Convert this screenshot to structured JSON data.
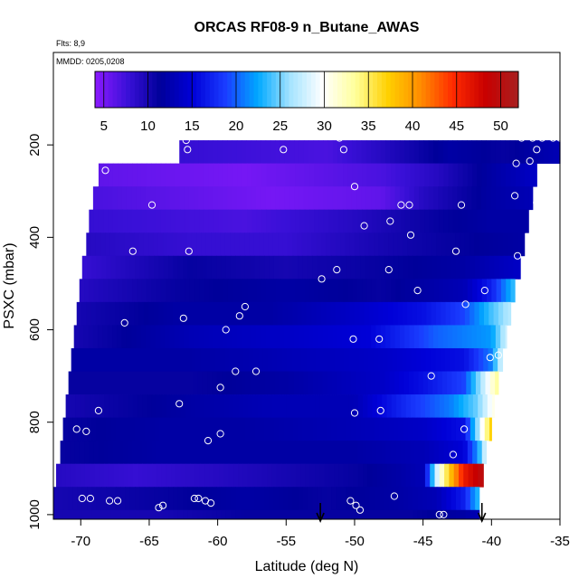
{
  "chart_data": {
    "type": "heatmap",
    "title": "ORCAS RF08-9 n_Butane_AWAS",
    "flights_note": "Flts: 8,9",
    "date_note": "MMDD: 0205,0208",
    "xlabel": "Latitude (deg N)",
    "ylabel": "PSXC (mbar)",
    "xlim": [
      -72,
      -35
    ],
    "ylim": [
      1010,
      0
    ],
    "x_ticks": [
      -70,
      -65,
      -60,
      -55,
      -50,
      -45,
      -40,
      -35
    ],
    "y_ticks": [
      200,
      400,
      600,
      800,
      1000
    ],
    "colorbar": {
      "range": [
        4,
        52
      ],
      "ticks": [
        5,
        10,
        15,
        20,
        25,
        30,
        35,
        40,
        45,
        50
      ],
      "colors": [
        "#8b1aff",
        "#3a10d8",
        "#00009a",
        "#0000d8",
        "#1a3cff",
        "#00a8ff",
        "#a6e4ff",
        "#ffffff",
        "#ffff9a",
        "#ffd000",
        "#ff8c00",
        "#ff2a00",
        "#c80000",
        "#a82020"
      ]
    },
    "pressure_bands_mbar": [
      190,
      240,
      290,
      340,
      390,
      440,
      490,
      540,
      590,
      640,
      690,
      740,
      790,
      840,
      890,
      940,
      990,
      1010
    ],
    "band_lat_min": [
      -62.8,
      -68.7,
      -69.1,
      -69.4,
      -69.6,
      -69.9,
      -70.1,
      -70.3,
      -70.5,
      -70.7,
      -70.9,
      -71.1,
      -71.3,
      -71.5,
      -71.8,
      -72.0,
      -72.0
    ],
    "band_lat_max": [
      -35,
      -36.7,
      -37.0,
      -37.3,
      -37.6,
      -37.9,
      -38.3,
      -38.6,
      -38.9,
      -39.2,
      -39.5,
      -39.8,
      -40.0,
      -40.3,
      -40.6,
      -40.9,
      -40.9
    ],
    "bands": [
      {
        "stops": [
          [
            -62.8,
            8
          ],
          [
            -52,
            7
          ],
          [
            -48,
            9
          ],
          [
            -43,
            12
          ],
          [
            -39,
            11
          ],
          [
            -35,
            13
          ]
        ]
      },
      {
        "stops": [
          [
            -68.7,
            6
          ],
          [
            -58,
            5
          ],
          [
            -48,
            7
          ],
          [
            -44,
            9
          ],
          [
            -40,
            12
          ],
          [
            -36.7,
            14
          ]
        ]
      },
      {
        "stops": [
          [
            -69.1,
            7
          ],
          [
            -56,
            5
          ],
          [
            -48,
            6
          ],
          [
            -45,
            9
          ],
          [
            -40,
            12
          ],
          [
            -37,
            13
          ]
        ]
      },
      {
        "stops": [
          [
            -69.4,
            8
          ],
          [
            -58,
            7
          ],
          [
            -50,
            9
          ],
          [
            -44,
            11
          ],
          [
            -40,
            12
          ],
          [
            -37.3,
            12
          ]
        ]
      },
      {
        "stops": [
          [
            -69.6,
            9
          ],
          [
            -62,
            8
          ],
          [
            -55,
            8
          ],
          [
            -48,
            10
          ],
          [
            -43,
            11
          ],
          [
            -37.6,
            12
          ]
        ]
      },
      {
        "stops": [
          [
            -69.9,
            8
          ],
          [
            -62,
            11
          ],
          [
            -55,
            10
          ],
          [
            -48,
            11
          ],
          [
            -42,
            12
          ],
          [
            -37.9,
            14
          ]
        ]
      },
      {
        "stops": [
          [
            -70.1,
            9
          ],
          [
            -63,
            11
          ],
          [
            -55,
            12
          ],
          [
            -48,
            11
          ],
          [
            -42,
            13
          ],
          [
            -40,
            17
          ],
          [
            -38.3,
            24
          ]
        ]
      },
      {
        "stops": [
          [
            -70.3,
            10
          ],
          [
            -63,
            12
          ],
          [
            -56,
            12
          ],
          [
            -50,
            14
          ],
          [
            -45,
            16
          ],
          [
            -42,
            19
          ],
          [
            -40,
            24
          ],
          [
            -38.6,
            27
          ]
        ]
      },
      {
        "stops": [
          [
            -70.5,
            10
          ],
          [
            -62,
            13
          ],
          [
            -55,
            14
          ],
          [
            -49,
            15
          ],
          [
            -46,
            18
          ],
          [
            -44,
            20
          ],
          [
            -42,
            21
          ],
          [
            -40,
            22
          ],
          [
            -38.9,
            28
          ]
        ]
      },
      {
        "stops": [
          [
            -70.7,
            12
          ],
          [
            -62,
            12
          ],
          [
            -55,
            13
          ],
          [
            -48,
            14
          ],
          [
            -45,
            15
          ],
          [
            -42,
            16
          ],
          [
            -40,
            21
          ],
          [
            -39.2,
            29
          ]
        ]
      },
      {
        "stops": [
          [
            -70.9,
            11
          ],
          [
            -62,
            11
          ],
          [
            -55,
            12
          ],
          [
            -48,
            14
          ],
          [
            -45,
            16
          ],
          [
            -42,
            19
          ],
          [
            -40.5,
            28
          ],
          [
            -39.5,
            34
          ]
        ]
      },
      {
        "stops": [
          [
            -71.1,
            10
          ],
          [
            -62,
            12
          ],
          [
            -56,
            13
          ],
          [
            -50,
            13
          ],
          [
            -46,
            18
          ],
          [
            -43,
            21
          ],
          [
            -41,
            25
          ],
          [
            -39.8,
            31
          ]
        ]
      },
      {
        "stops": [
          [
            -71.3,
            11
          ],
          [
            -64,
            12
          ],
          [
            -58,
            12
          ],
          [
            -50,
            13
          ],
          [
            -45,
            14
          ],
          [
            -42,
            16
          ],
          [
            -41,
            26
          ],
          [
            -40,
            38
          ]
        ]
      },
      {
        "stops": [
          [
            -71.5,
            11
          ],
          [
            -64,
            12
          ],
          [
            -58,
            12
          ],
          [
            -50,
            12
          ],
          [
            -45,
            13
          ],
          [
            -42,
            15
          ],
          [
            -41,
            22
          ],
          [
            -40.3,
            30
          ]
        ]
      },
      {
        "stops": [
          [
            -71.8,
            9
          ],
          [
            -66,
            8
          ],
          [
            -60,
            9
          ],
          [
            -55,
            10
          ],
          [
            -50,
            11
          ],
          [
            -47,
            12
          ],
          [
            -45,
            13
          ],
          [
            -44,
            28
          ],
          [
            -43,
            38
          ],
          [
            -42,
            46
          ],
          [
            -40.6,
            50
          ]
        ]
      },
      {
        "stops": [
          [
            -72,
            10
          ],
          [
            -64,
            11
          ],
          [
            -58,
            12
          ],
          [
            -52,
            11
          ],
          [
            -47,
            12
          ],
          [
            -44,
            13
          ],
          [
            -42,
            17
          ],
          [
            -40.9,
            24
          ]
        ]
      },
      {
        "stops": [
          [
            -72,
            10
          ],
          [
            -64,
            10
          ],
          [
            -58,
            11
          ],
          [
            -52,
            11
          ],
          [
            -46,
            11
          ],
          [
            -42,
            12
          ],
          [
            -40.9,
            13
          ]
        ]
      }
    ],
    "sample_points": [
      [
        -62.3,
        190
      ],
      [
        -62.2,
        210
      ],
      [
        -55.2,
        210
      ],
      [
        -51.1,
        185
      ],
      [
        -50.8,
        210
      ],
      [
        -37.8,
        185
      ],
      [
        -37.0,
        185
      ],
      [
        -36.3,
        185
      ],
      [
        -35.5,
        185
      ],
      [
        -35.0,
        185
      ],
      [
        -36.7,
        210
      ],
      [
        -37.2,
        235
      ],
      [
        -38.2,
        240
      ],
      [
        -68.2,
        255
      ],
      [
        -50.0,
        290
      ],
      [
        -38.3,
        310
      ],
      [
        -36.7,
        325
      ],
      [
        -64.8,
        330
      ],
      [
        -46.6,
        330
      ],
      [
        -46.0,
        330
      ],
      [
        -42.2,
        330
      ],
      [
        -69.8,
        375
      ],
      [
        -49.3,
        375
      ],
      [
        -47.4,
        365
      ],
      [
        -45.9,
        395
      ],
      [
        -36.9,
        375
      ],
      [
        -66.2,
        430
      ],
      [
        -62.1,
        430
      ],
      [
        -42.6,
        430
      ],
      [
        -38.1,
        440
      ],
      [
        -52.4,
        490
      ],
      [
        -51.3,
        470
      ],
      [
        -47.5,
        470
      ],
      [
        -45.4,
        515
      ],
      [
        -40.5,
        515
      ],
      [
        -41.9,
        545
      ],
      [
        -58.0,
        550
      ],
      [
        -38.0,
        565
      ],
      [
        -66.8,
        585
      ],
      [
        -62.5,
        575
      ],
      [
        -58.4,
        570
      ],
      [
        -59.4,
        600
      ],
      [
        -50.1,
        620
      ],
      [
        -48.2,
        620
      ],
      [
        -40.1,
        660
      ],
      [
        -39.5,
        655
      ],
      [
        -57.2,
        690
      ],
      [
        -58.7,
        690
      ],
      [
        -44.4,
        700
      ],
      [
        -59.8,
        725
      ],
      [
        -62.8,
        760
      ],
      [
        -68.7,
        775
      ],
      [
        -71.7,
        775
      ],
      [
        -50.0,
        780
      ],
      [
        -48.1,
        775
      ],
      [
        -70.3,
        815
      ],
      [
        -69.6,
        820
      ],
      [
        -60.7,
        840
      ],
      [
        -59.8,
        825
      ],
      [
        -42.0,
        815
      ],
      [
        -39.5,
        820
      ],
      [
        -42.8,
        870
      ],
      [
        -69.9,
        965
      ],
      [
        -69.3,
        965
      ],
      [
        -67.9,
        970
      ],
      [
        -67.3,
        970
      ],
      [
        -64.0,
        980
      ],
      [
        -64.3,
        985
      ],
      [
        -61.7,
        965
      ],
      [
        -61.4,
        965
      ],
      [
        -60.9,
        970
      ],
      [
        -60.5,
        975
      ],
      [
        -50.3,
        970
      ],
      [
        -49.9,
        980
      ],
      [
        -49.6,
        990
      ],
      [
        -47.1,
        960
      ],
      [
        -43.8,
        1000
      ],
      [
        -43.5,
        1000
      ],
      [
        -40.5,
        1005
      ]
    ],
    "arrows_lat": [
      -52.5,
      -40.7
    ]
  }
}
